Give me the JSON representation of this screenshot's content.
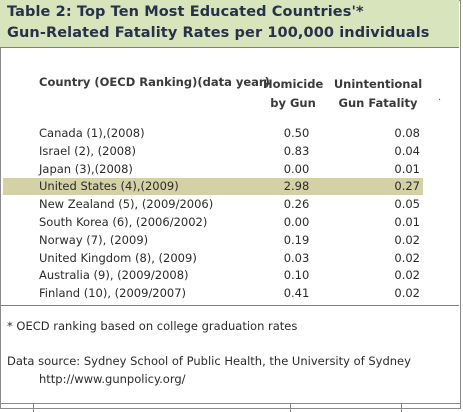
{
  "title": {
    "line1": "Table 2:  Top Ten Most Educated Countries'*",
    "line2": "Gun-Related Fatality Rates per 100,000 individuals"
  },
  "headers": {
    "country": "Country (OECD Ranking)(data year)",
    "homicide_1": "Homicide",
    "homicide_2": "by Gun",
    "unintentional_1": "Unintentional",
    "unintentional_2": "Gun Fatality"
  },
  "stray_mark": ".",
  "rows": [
    {
      "country": "Canada (1),(2008)",
      "homicide": "0.50",
      "unintentional": "0.08"
    },
    {
      "country": "Israel (2), (2008)",
      "homicide": "0.83",
      "unintentional": "0.04"
    },
    {
      "country": "Japan (3),(2008)",
      "homicide": "0.00",
      "unintentional": "0.01"
    },
    {
      "country": "United States (4),(2009)",
      "homicide": "2.98",
      "unintentional": "0.27"
    },
    {
      "country": "New Zealand (5), (2009/2006)",
      "homicide": "0.26",
      "unintentional": "0.05"
    },
    {
      "country": "South Korea (6), (2006/2002)",
      "homicide": "0.00",
      "unintentional": "0.01"
    },
    {
      "country": "Norway (7), (2009)",
      "homicide": "0.19",
      "unintentional": "0.02"
    },
    {
      "country": "United Kingdom (8), (2009)",
      "homicide": "0.03",
      "unintentional": "0.02"
    },
    {
      "country": "Australia (9), (2009/2008)",
      "homicide": "0.10",
      "unintentional": "0.02"
    },
    {
      "country": "Finland (10), (2009/2007)",
      "homicide": "0.41",
      "unintentional": "0.02"
    }
  ],
  "highlight_color": "#d5d1a6",
  "title_bg_color": "#d8e4bc",
  "notes": {
    "footnote": "* OECD ranking based on college graduation rates",
    "source": "Data source: Sydney School of Public Health, the University of Sydney",
    "url": "http://www.gunpolicy.org/"
  }
}
